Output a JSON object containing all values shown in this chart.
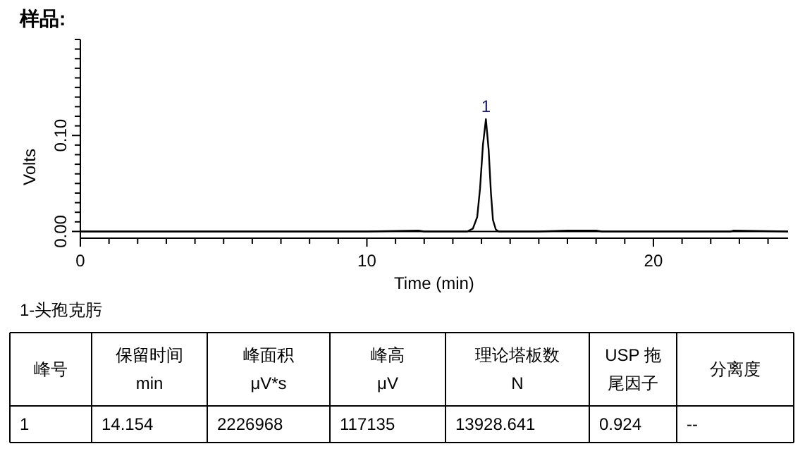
{
  "chart_data": {
    "type": "line",
    "title": "样品:",
    "xlabel": "Time (min)",
    "ylabel": "Volts",
    "series": [
      {
        "color": "#000000",
        "x": [
          0,
          5,
          10,
          11.8,
          12,
          13.5,
          13.7,
          13.85,
          13.95,
          14.05,
          14.154,
          14.25,
          14.33,
          14.4,
          14.5,
          14.6,
          16,
          17,
          18,
          18.2,
          20,
          22.7,
          22.8,
          24.7
        ],
        "values": [
          0,
          0,
          0,
          0.001,
          0,
          0,
          0.003,
          0.015,
          0.045,
          0.09,
          0.117,
          0.085,
          0.04,
          0.012,
          0.002,
          0,
          0,
          0.001,
          0.001,
          0,
          0,
          0,
          0.001,
          0
        ]
      }
    ],
    "xlim": [
      0,
      24.7
    ],
    "ylim": [
      -0.007,
      0.2
    ],
    "xticks": [
      0,
      {
        "value": 1,
        "label": null
      },
      {
        "value": 2,
        "label": null
      },
      {
        "value": 3,
        "label": null
      },
      {
        "value": 4,
        "label": null
      },
      {
        "value": 5,
        "label": null
      },
      {
        "value": 6,
        "label": null
      },
      {
        "value": 7,
        "label": null
      },
      {
        "value": 8,
        "label": null
      },
      {
        "value": 9,
        "label": null
      },
      10,
      {
        "value": 11,
        "label": null
      },
      {
        "value": 12,
        "label": null
      },
      {
        "value": 13,
        "label": null
      },
      {
        "value": 14,
        "label": null
      },
      {
        "value": 15,
        "label": null
      },
      {
        "value": 16,
        "label": null
      },
      {
        "value": 17,
        "label": null
      },
      {
        "value": 18,
        "label": null
      },
      {
        "value": 19,
        "label": null
      },
      20,
      {
        "value": 21,
        "label": null
      },
      {
        "value": 22,
        "label": null
      },
      {
        "value": 23,
        "label": null
      },
      {
        "value": 24,
        "label": null
      }
    ],
    "yticks": [
      {
        "value": 0,
        "label": "0.00"
      },
      {
        "value": 0.01,
        "label": null
      },
      {
        "value": 0.02,
        "label": null
      },
      {
        "value": 0.03,
        "label": null
      },
      {
        "value": 0.04,
        "label": null
      },
      {
        "value": 0.05,
        "label": null
      },
      {
        "value": 0.06,
        "label": null
      },
      {
        "value": 0.07,
        "label": null
      },
      {
        "value": 0.08,
        "label": null
      },
      {
        "value": 0.09,
        "label": null
      },
      {
        "value": 0.1,
        "label": "0.10"
      },
      {
        "value": 0.11,
        "label": null
      },
      {
        "value": 0.12,
        "label": null
      },
      {
        "value": 0.13,
        "label": null
      },
      {
        "value": 0.14,
        "label": null
      },
      {
        "value": 0.15,
        "label": null
      },
      {
        "value": 0.16,
        "label": null
      },
      {
        "value": 0.17,
        "label": null
      },
      {
        "value": 0.18,
        "label": null
      },
      {
        "value": 0.19,
        "label": null
      },
      {
        "value": 0.2,
        "label": null
      }
    ],
    "ref_lines": [
      {
        "axis": "y",
        "value": 0,
        "color": "#000000"
      }
    ],
    "annotations": [
      {
        "text": "1",
        "x": 14.154,
        "y": 0.117
      },
      "1-头孢克肟",
      "峰号",
      "保留时间\nmin",
      "峰面积\nμV*s",
      "峰高\nμV",
      "理论塔板数\nN",
      "USP 拖尾因子",
      "分离度",
      "1",
      "14.154",
      "2226968",
      "117135",
      "13928.641",
      "0.924",
      "--"
    ],
    "grid": false,
    "marker": "none",
    "line_style": "solid"
  }
}
